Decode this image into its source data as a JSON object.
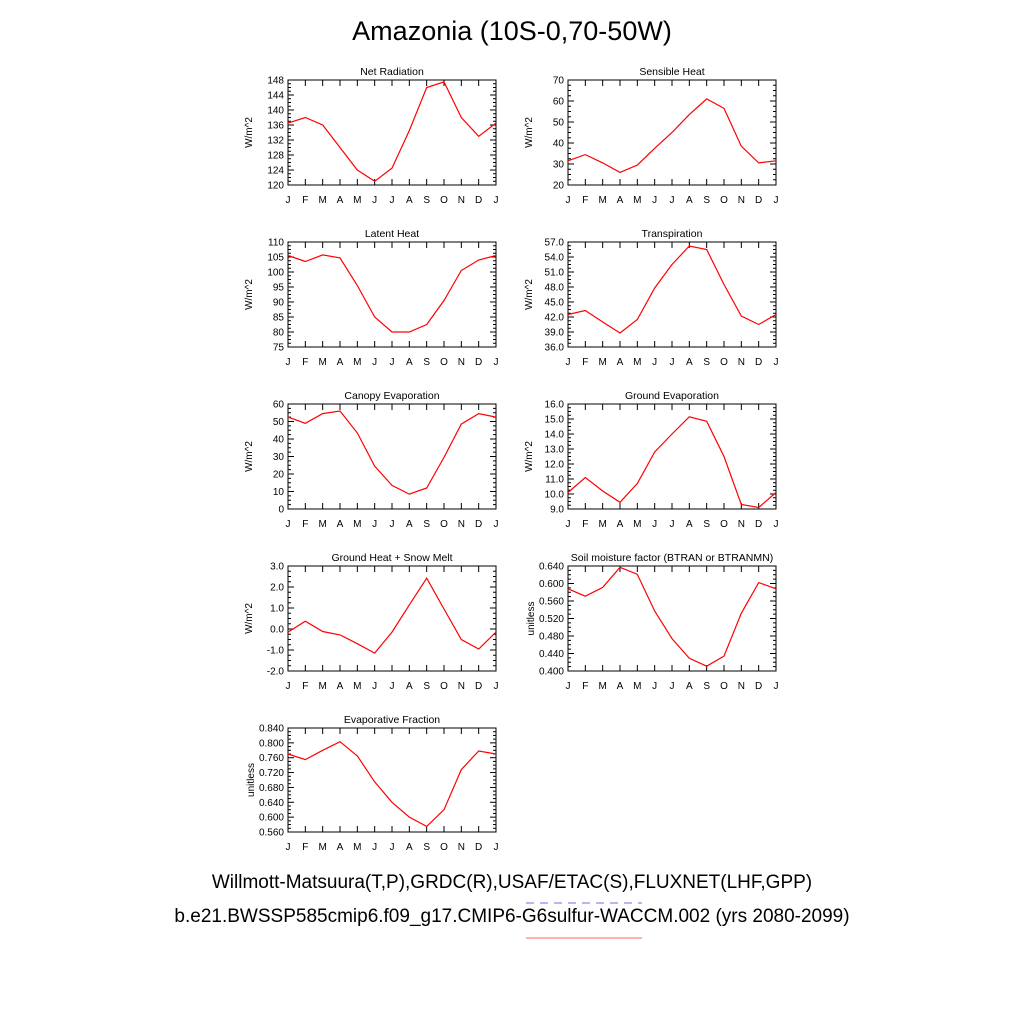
{
  "main_title": "Amazonia (10S-0,70-50W)",
  "captions": {
    "observations": "Willmott-Matsuura(T,P),GRDC(R),USAF/ETAC(S),FLUXNET(LHF,GPP)",
    "model": "b.e21.BWSSP585cmip6.f09_g17.CMIP6-G6sulfur-WACCM.002 (yrs 2080-2099)"
  },
  "colors": {
    "series": "#ff0000",
    "obs_line": "#8c8cf0",
    "model_line": "#ff8080"
  },
  "chart_data": [
    {
      "type": "line",
      "title": "Net Radiation",
      "ylabel": "W/m^2",
      "x": [
        "J",
        "F",
        "M",
        "A",
        "M",
        "J",
        "J",
        "A",
        "S",
        "O",
        "N",
        "D",
        "J"
      ],
      "ylim": [
        120,
        148
      ],
      "yticks": [
        "120",
        "124",
        "128",
        "132",
        "136",
        "140",
        "144",
        "148"
      ],
      "series": [
        {
          "values": [
            136.5,
            138,
            136,
            130,
            124,
            121,
            124.5,
            134.5,
            146,
            147.5,
            138,
            133,
            136.5
          ]
        }
      ]
    },
    {
      "type": "line",
      "title": "Sensible Heat",
      "ylabel": "W/m^2",
      "x": [
        "J",
        "F",
        "M",
        "A",
        "M",
        "J",
        "J",
        "A",
        "S",
        "O",
        "N",
        "D",
        "J"
      ],
      "ylim": [
        20,
        70
      ],
      "yticks": [
        "20",
        "30",
        "40",
        "50",
        "60",
        "70"
      ],
      "series": [
        {
          "values": [
            31.5,
            34.5,
            30.5,
            26,
            29.5,
            37.5,
            45,
            53.5,
            61,
            56.5,
            38.5,
            30.5,
            31.5
          ]
        }
      ]
    },
    {
      "type": "line",
      "title": "Latent Heat",
      "ylabel": "W/m^2",
      "x": [
        "J",
        "F",
        "M",
        "A",
        "M",
        "J",
        "J",
        "A",
        "S",
        "O",
        "N",
        "D",
        "J"
      ],
      "ylim": [
        75,
        110
      ],
      "yticks": [
        "75",
        "80",
        "85",
        "90",
        "95",
        "100",
        "105",
        "110"
      ],
      "series": [
        {
          "values": [
            105.5,
            103.5,
            105.7,
            104.7,
            95.5,
            85,
            80,
            80,
            82.5,
            90.5,
            100.5,
            104,
            105.5
          ]
        }
      ]
    },
    {
      "type": "line",
      "title": "Transpiration",
      "ylabel": "W/m^2",
      "x": [
        "J",
        "F",
        "M",
        "A",
        "M",
        "J",
        "J",
        "A",
        "S",
        "O",
        "N",
        "D",
        "J"
      ],
      "ylim": [
        36,
        57
      ],
      "yticks": [
        "36.0",
        "39.0",
        "42.0",
        "45.0",
        "48.0",
        "51.0",
        "54.0",
        "57.0"
      ],
      "series": [
        {
          "values": [
            42.5,
            43.3,
            41,
            38.8,
            41.5,
            47.8,
            52.5,
            56.2,
            55.5,
            48.5,
            42.2,
            40.5,
            42.5
          ]
        }
      ]
    },
    {
      "type": "line",
      "title": "Canopy Evaporation",
      "ylabel": "W/m^2",
      "x": [
        "J",
        "F",
        "M",
        "A",
        "M",
        "J",
        "J",
        "A",
        "S",
        "O",
        "N",
        "D",
        "J"
      ],
      "ylim": [
        0,
        60
      ],
      "yticks": [
        "0",
        "10",
        "20",
        "30",
        "40",
        "50",
        "60"
      ],
      "series": [
        {
          "values": [
            52.5,
            49,
            54.5,
            56,
            43.5,
            24.5,
            13.5,
            8.5,
            12,
            29.5,
            48.5,
            54.5,
            52.5
          ]
        }
      ]
    },
    {
      "type": "line",
      "title": "Ground Evaporation",
      "ylabel": "W/m^2",
      "x": [
        "J",
        "F",
        "M",
        "A",
        "M",
        "J",
        "J",
        "A",
        "S",
        "O",
        "N",
        "D",
        "J"
      ],
      "ylim": [
        9,
        16
      ],
      "yticks": [
        "9.0",
        "10.0",
        "11.0",
        "12.0",
        "13.0",
        "14.0",
        "15.0",
        "16.0"
      ],
      "series": [
        {
          "values": [
            10.1,
            11.1,
            10.2,
            9.45,
            10.7,
            12.8,
            14,
            15.15,
            14.85,
            12.5,
            9.3,
            9.1,
            10.1
          ]
        }
      ]
    },
    {
      "type": "line",
      "title": "Ground Heat + Snow Melt",
      "ylabel": "W/m^2",
      "x": [
        "J",
        "F",
        "M",
        "A",
        "M",
        "J",
        "J",
        "A",
        "S",
        "O",
        "N",
        "D",
        "J"
      ],
      "ylim": [
        -2,
        3
      ],
      "yticks": [
        "-2.0",
        "-1.0",
        "0.0",
        "1.0",
        "2.0",
        "3.0"
      ],
      "series": [
        {
          "values": [
            -0.15,
            0.37,
            -0.12,
            -0.28,
            -0.7,
            -1.15,
            -0.15,
            1.15,
            2.42,
            0.95,
            -0.5,
            -0.95,
            -0.15
          ]
        }
      ]
    },
    {
      "type": "line",
      "title": "Soil moisture factor (BTRAN or BTRANMN)",
      "ylabel": "unitless",
      "x": [
        "J",
        "F",
        "M",
        "A",
        "M",
        "J",
        "J",
        "A",
        "S",
        "O",
        "N",
        "D",
        "J"
      ],
      "ylim": [
        0.4,
        0.64
      ],
      "yticks": [
        "0.400",
        "0.440",
        "0.480",
        "0.520",
        "0.560",
        "0.600",
        "0.640"
      ],
      "series": [
        {
          "values": [
            0.588,
            0.571,
            0.591,
            0.637,
            0.621,
            0.537,
            0.474,
            0.429,
            0.411,
            0.434,
            0.532,
            0.602,
            0.588
          ]
        }
      ]
    },
    {
      "type": "line",
      "title": "Evaporative Fraction",
      "ylabel": "unitless",
      "x": [
        "J",
        "F",
        "M",
        "A",
        "M",
        "J",
        "J",
        "A",
        "S",
        "O",
        "N",
        "D",
        "J"
      ],
      "ylim": [
        0.56,
        0.84
      ],
      "yticks": [
        "0.560",
        "0.600",
        "0.640",
        "0.680",
        "0.720",
        "0.760",
        "0.800",
        "0.840"
      ],
      "series": [
        {
          "values": [
            0.77,
            0.755,
            0.78,
            0.803,
            0.765,
            0.695,
            0.64,
            0.6,
            0.575,
            0.62,
            0.728,
            0.778,
            0.77
          ]
        }
      ]
    }
  ]
}
